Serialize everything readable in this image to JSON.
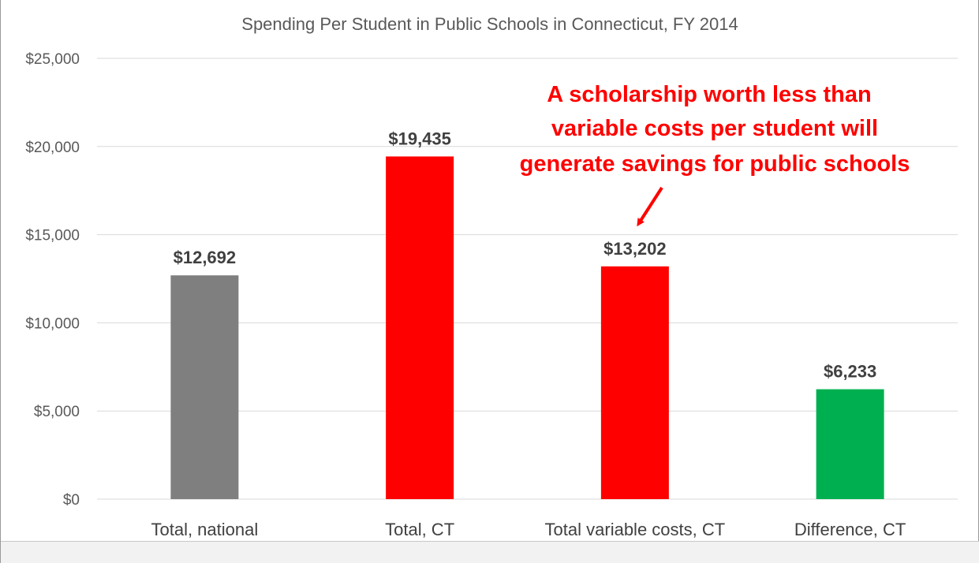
{
  "chart_data": {
    "type": "bar",
    "title": "Spending Per Student in Public Schools in Connecticut, FY 2014",
    "xlabel": "",
    "ylabel": "",
    "ylim": [
      0,
      25000
    ],
    "yticks": [
      0,
      5000,
      10000,
      15000,
      20000,
      25000
    ],
    "ytick_labels": [
      "$0",
      "$5,000",
      "$10,000",
      "$15,000",
      "$20,000",
      "$25,000"
    ],
    "grid": true,
    "legend": "none",
    "categories": [
      "Total, national",
      "Total, CT",
      "Total variable costs, CT",
      "Difference, CT"
    ],
    "values": [
      12692,
      19435,
      13202,
      6233
    ],
    "data_labels": [
      "$12,692",
      "$19,435",
      "$13,202",
      "$6,233"
    ],
    "bar_colors": [
      "#7f7f7f",
      "#ff0000",
      "#ff0000",
      "#00b050"
    ],
    "annotation": {
      "lines": [
        "A scholarship worth less than",
        "variable costs per student will",
        "generate savings for public schools"
      ],
      "color": "#ff0000",
      "points_to": "Total variable costs, CT"
    }
  }
}
